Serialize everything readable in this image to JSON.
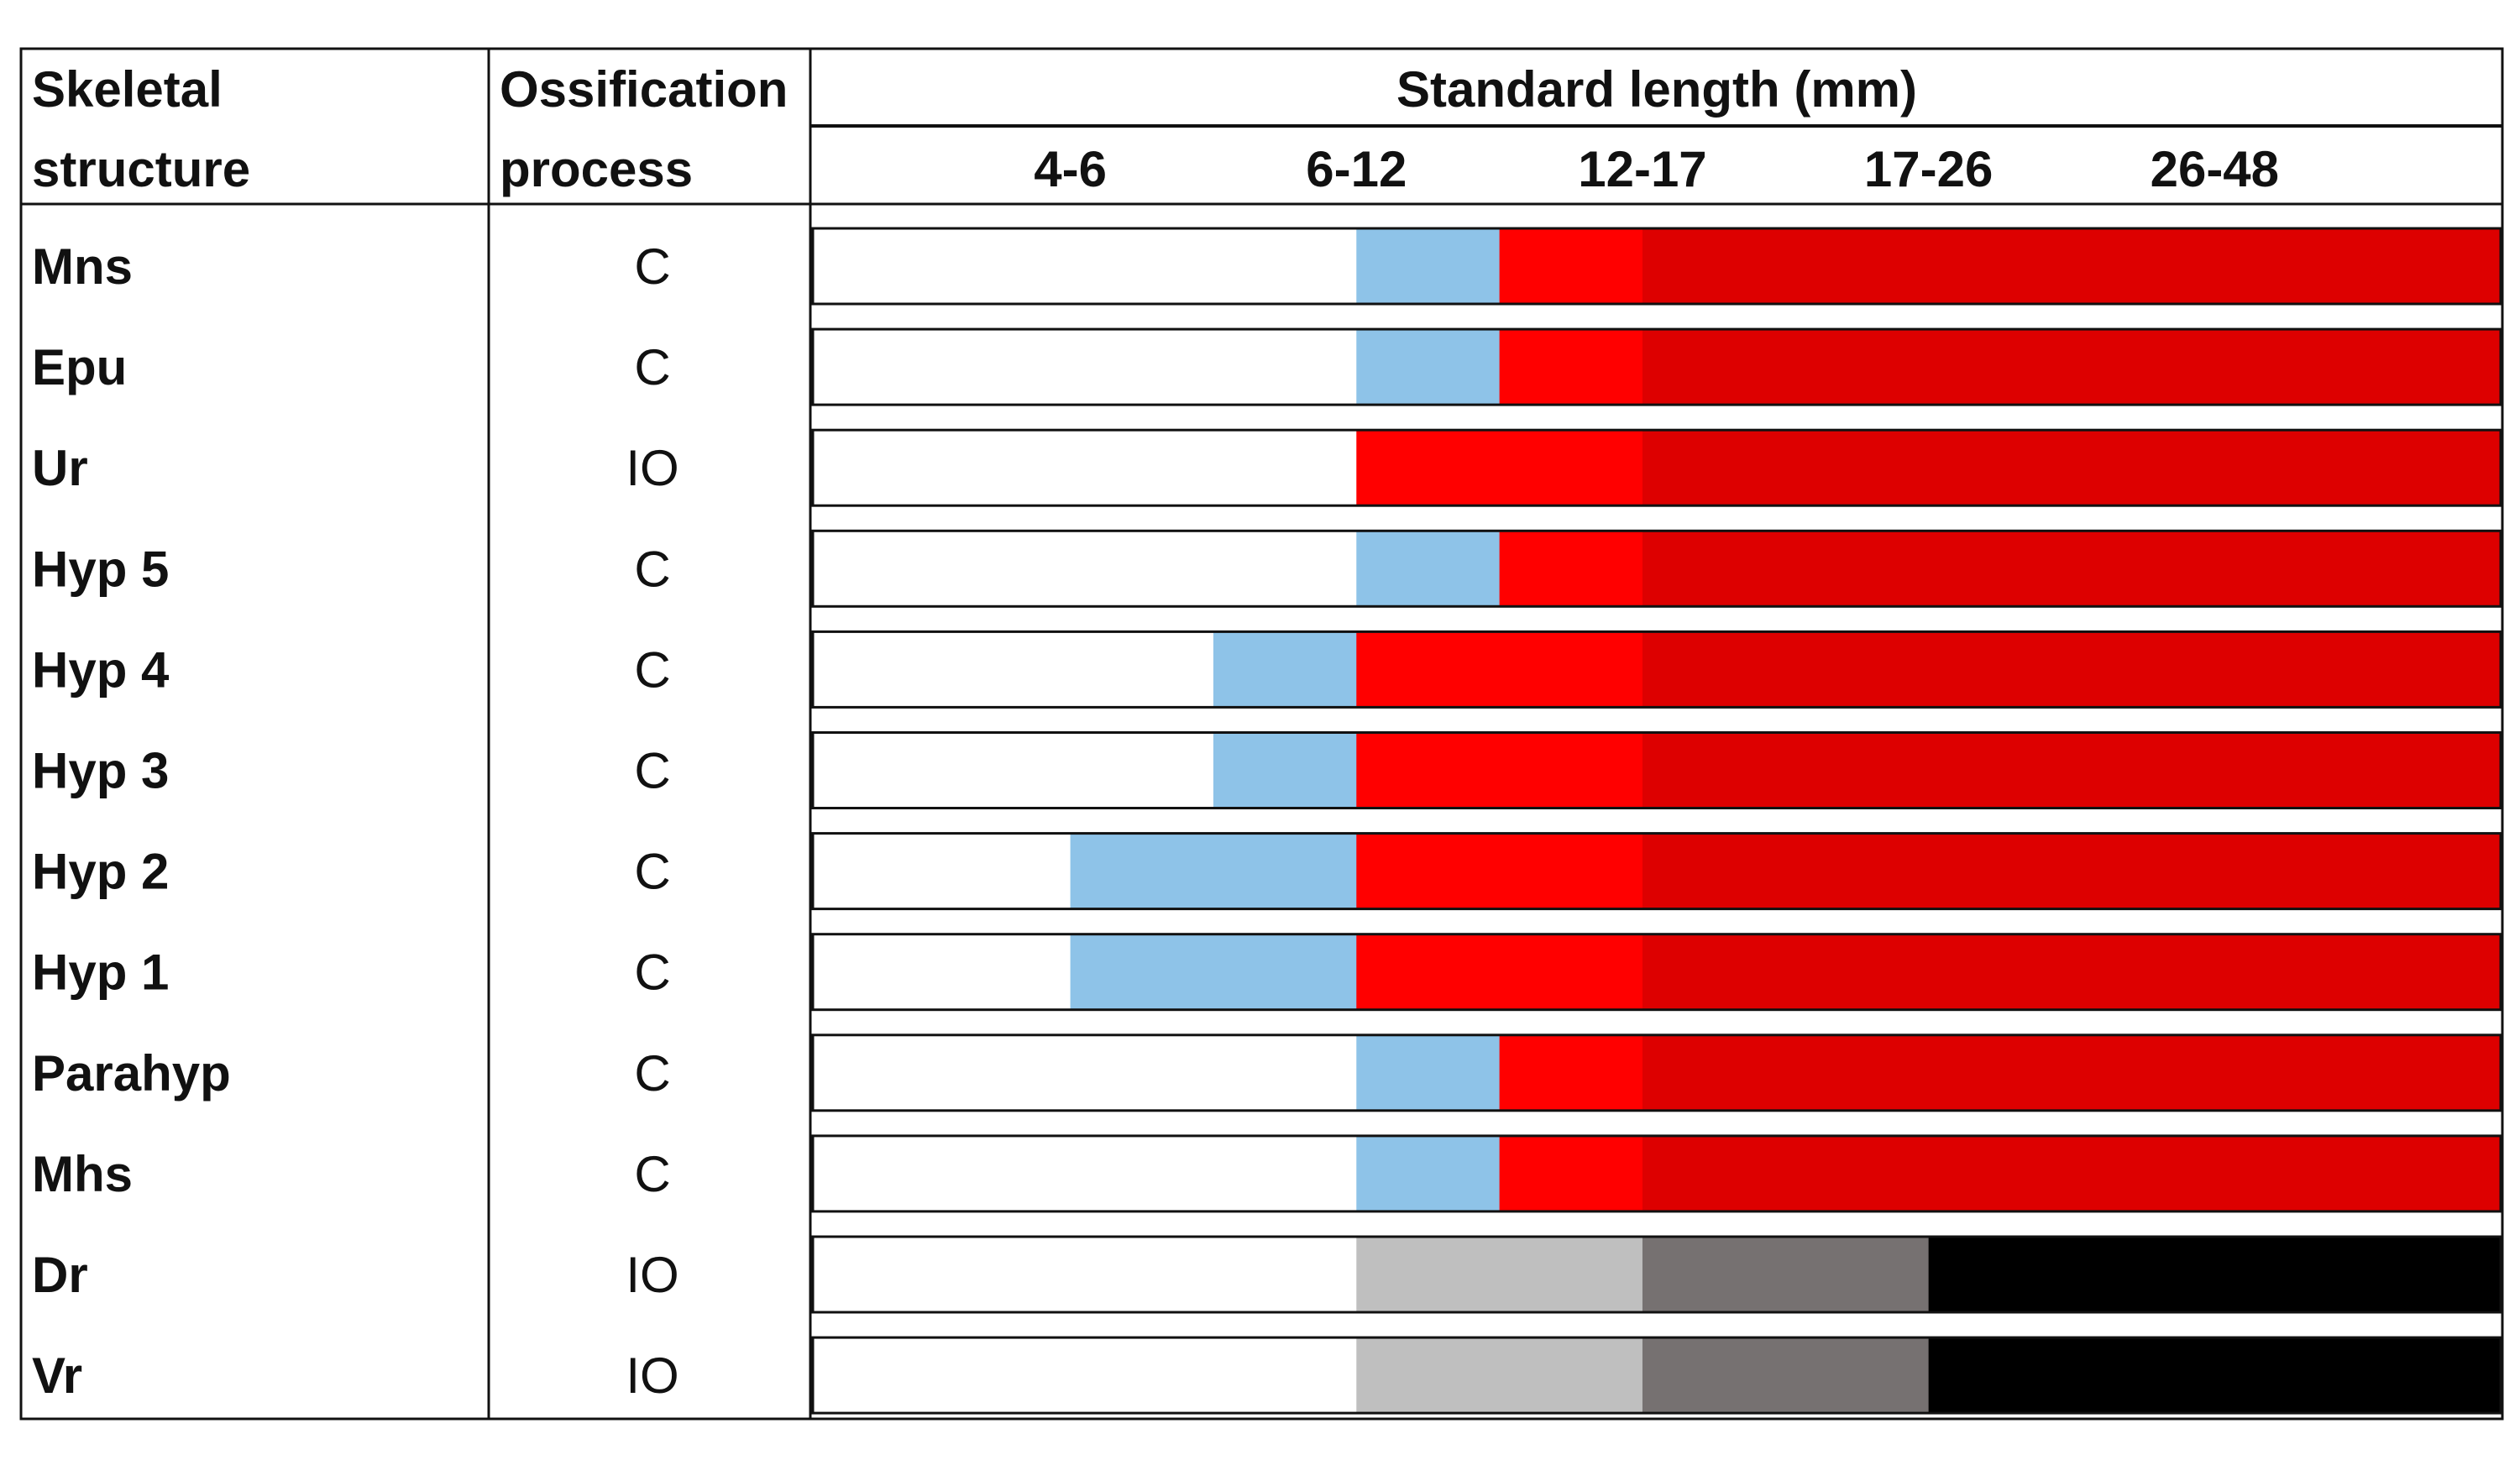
{
  "chart_data": {
    "type": "table",
    "headers": {
      "col1": [
        "Skeletal",
        "structure"
      ],
      "col2": [
        "Ossification",
        "process"
      ],
      "col3": "Standard length (mm)"
    },
    "length_bins": [
      "4-6",
      "6-12",
      "12-17",
      "17-26",
      "26-48"
    ],
    "stages": [
      {
        "key": "none",
        "color": "#ffffff"
      },
      {
        "key": "cartilage",
        "color": "#8ec3e8"
      },
      {
        "key": "ossifying",
        "color": "#ff0000"
      },
      {
        "key": "ossified",
        "color": "#dd0000"
      },
      {
        "key": "ray_early",
        "color": "#bfbfbf"
      },
      {
        "key": "ray_mid",
        "color": "#767171"
      },
      {
        "key": "ray_late",
        "color": "#000000"
      }
    ],
    "rows": [
      {
        "structure": "Mns",
        "process": "C",
        "segments": [
          [
            "none",
            0,
            1.9
          ],
          [
            "cartilage",
            1.9,
            2.4
          ],
          [
            "ossifying",
            2.4,
            2.9
          ],
          [
            "ossified",
            2.9,
            5.9
          ]
        ]
      },
      {
        "structure": "Epu",
        "process": "C",
        "segments": [
          [
            "none",
            0,
            1.9
          ],
          [
            "cartilage",
            1.9,
            2.4
          ],
          [
            "ossifying",
            2.4,
            2.9
          ],
          [
            "ossified",
            2.9,
            5.9
          ]
        ]
      },
      {
        "structure": "Ur",
        "process": "IO",
        "segments": [
          [
            "none",
            0,
            1.9
          ],
          [
            "ossifying",
            1.9,
            2.9
          ],
          [
            "ossified",
            2.9,
            5.9
          ]
        ]
      },
      {
        "structure": "Hyp 5",
        "process": "C",
        "segments": [
          [
            "none",
            0,
            1.9
          ],
          [
            "cartilage",
            1.9,
            2.4
          ],
          [
            "ossifying",
            2.4,
            2.9
          ],
          [
            "ossified",
            2.9,
            5.9
          ]
        ]
      },
      {
        "structure": "Hyp 4",
        "process": "C",
        "segments": [
          [
            "none",
            0,
            1.4
          ],
          [
            "cartilage",
            1.4,
            1.9
          ],
          [
            "ossifying",
            1.9,
            2.9
          ],
          [
            "ossified",
            2.9,
            5.9
          ]
        ]
      },
      {
        "structure": "Hyp 3",
        "process": "C",
        "segments": [
          [
            "none",
            0,
            1.4
          ],
          [
            "cartilage",
            1.4,
            1.9
          ],
          [
            "ossifying",
            1.9,
            2.9
          ],
          [
            "ossified",
            2.9,
            5.9
          ]
        ]
      },
      {
        "structure": "Hyp 2",
        "process": "C",
        "segments": [
          [
            "none",
            0,
            0.9
          ],
          [
            "cartilage",
            0.9,
            1.9
          ],
          [
            "ossifying",
            1.9,
            2.9
          ],
          [
            "ossified",
            2.9,
            5.9
          ]
        ]
      },
      {
        "structure": "Hyp 1",
        "process": "C",
        "segments": [
          [
            "none",
            0,
            0.9
          ],
          [
            "cartilage",
            0.9,
            1.9
          ],
          [
            "ossifying",
            1.9,
            2.9
          ],
          [
            "ossified",
            2.9,
            5.9
          ]
        ]
      },
      {
        "structure": "Parahyp",
        "process": "C",
        "segments": [
          [
            "none",
            0,
            1.9
          ],
          [
            "cartilage",
            1.9,
            2.4
          ],
          [
            "ossifying",
            2.4,
            2.9
          ],
          [
            "ossified",
            2.9,
            5.9
          ]
        ]
      },
      {
        "structure": "Mhs",
        "process": "C",
        "segments": [
          [
            "none",
            0,
            1.9
          ],
          [
            "cartilage",
            1.9,
            2.4
          ],
          [
            "ossifying",
            2.4,
            2.9
          ],
          [
            "ossified",
            2.9,
            5.9
          ]
        ]
      },
      {
        "structure": "Dr",
        "process": "IO",
        "segments": [
          [
            "none",
            0,
            1.9
          ],
          [
            "ray_early",
            1.9,
            2.9
          ],
          [
            "ray_mid",
            2.9,
            3.9
          ],
          [
            "ray_late",
            3.9,
            5.9
          ]
        ]
      },
      {
        "structure": "Vr",
        "process": "IO",
        "segments": [
          [
            "none",
            0,
            1.9
          ],
          [
            "ray_early",
            1.9,
            2.9
          ],
          [
            "ray_mid",
            2.9,
            3.9
          ],
          [
            "ray_late",
            3.9,
            5.9
          ]
        ]
      }
    ],
    "scale_max": 5.9
  }
}
